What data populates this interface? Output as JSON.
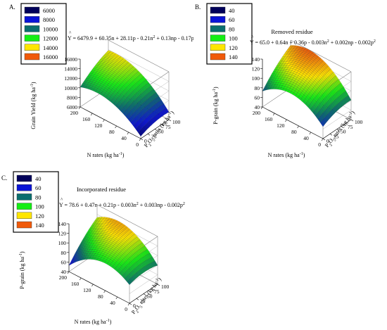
{
  "colors": {
    "c0": "#00005a",
    "c1": "#0a14d6",
    "c2": "#0a6e6e",
    "c3": "#14ee14",
    "c4": "#ffe600",
    "c5": "#f05a0a"
  },
  "chart_data": [
    {
      "type": "surface3d",
      "panel_label": "A.",
      "title": "",
      "equation": {
        "lhs": "Y = ",
        "terms": [
          {
            "text": "6479.9 + 60.35n + 28.11p - 0.21n"
          },
          {
            "sup": "2"
          },
          {
            "text": " + 0.13np - 0.17p"
          },
          {
            "sup": "2"
          }
        ]
      },
      "legend": [
        "6000",
        "8000",
        "10000",
        "12000",
        "14000",
        "16000"
      ],
      "zlabel": {
        "main": "Grain Yield (kg ha",
        "sup": "-1",
        "close": ")"
      },
      "xlabel": {
        "main": "N rates (kg ha",
        "sup": "-1",
        "close": ")"
      },
      "ylabel": {
        "pre": "P",
        "sub": "2",
        "mid": "O",
        "sub2": "5",
        "main": " rates (kg ha",
        "sup": "-1",
        "close": ")"
      },
      "n_ticks": [
        "200",
        "160",
        "120",
        "80",
        "40",
        "0"
      ],
      "p_ticks": [
        "0",
        "25",
        "50",
        "75",
        "100"
      ],
      "z_ticks": [
        "6000",
        "8000",
        "10000",
        "12000",
        "14000",
        "16000"
      ],
      "z_range": [
        6000,
        16000
      ],
      "n_range": [
        0,
        200
      ],
      "p_range": [
        0,
        100
      ],
      "coefficients": {
        "b0": 6479.9,
        "bn": 60.35,
        "bp": 28.11,
        "bnn": -0.21,
        "bnp": 0.13,
        "bpp": -0.17
      }
    },
    {
      "type": "surface3d",
      "panel_label": "B.",
      "title": "Removed residue",
      "equation": {
        "lhs": "Y = ",
        "terms": [
          {
            "text": "65.0 + 0.64n + 0.36p - 0.003n"
          },
          {
            "sup": "2"
          },
          {
            "text": " + 0.002np - 0.002p"
          },
          {
            "sup": "2"
          }
        ]
      },
      "legend": [
        "40",
        "60",
        "80",
        "100",
        "120",
        "140"
      ],
      "zlabel": {
        "main": "P-grain (kg ha",
        "sup": "-1",
        "close": ")"
      },
      "xlabel": {
        "main": "N rates (kg ha",
        "sup": "-1",
        "close": ")"
      },
      "ylabel": {
        "pre": "P",
        "sub": "2",
        "mid": "O",
        "sub2": "5",
        "main": " rates (kg ha",
        "sup": "-1",
        "close": ")"
      },
      "n_ticks": [
        "200",
        "160",
        "120",
        "80",
        "40",
        "0"
      ],
      "p_ticks": [
        "0",
        "25",
        "50",
        "75",
        "100"
      ],
      "z_ticks": [
        "40",
        "60",
        "80",
        "100",
        "120",
        "140"
      ],
      "z_range": [
        40,
        140
      ],
      "n_range": [
        0,
        200
      ],
      "p_range": [
        0,
        100
      ],
      "coefficients": {
        "b0": 65.0,
        "bn": 0.64,
        "bp": 0.36,
        "bnn": -0.003,
        "bnp": 0.002,
        "bpp": -0.002
      }
    },
    {
      "type": "surface3d",
      "panel_label": "C.",
      "title": "Incorporated residue",
      "equation": {
        "lhs": "Y = ",
        "terms": [
          {
            "text": "78.6 + 0.47n + 0.21p - 0.003n"
          },
          {
            "sup": "2"
          },
          {
            "text": " + 0.003np - 0.002p"
          },
          {
            "sup": "2"
          }
        ]
      },
      "legend": [
        "40",
        "60",
        "80",
        "100",
        "120",
        "140"
      ],
      "zlabel": {
        "main": "P-grain (kg ha",
        "sup": "-1",
        "close": ")"
      },
      "xlabel": {
        "main": "N rates (kg ha",
        "sup": "-1",
        "close": ")"
      },
      "ylabel": {
        "pre": "P",
        "sub": "2",
        "mid": "O",
        "sub2": "5",
        "main": " rates (kg ha",
        "sup": "-1",
        "close": ")"
      },
      "n_ticks": [
        "200",
        "160",
        "120",
        "80",
        "40",
        "0"
      ],
      "p_ticks": [
        "0",
        "25",
        "50",
        "75",
        "100"
      ],
      "z_ticks": [
        "40",
        "60",
        "80",
        "100",
        "120",
        "140"
      ],
      "z_range": [
        40,
        140
      ],
      "n_range": [
        0,
        200
      ],
      "p_range": [
        0,
        100
      ],
      "coefficients": {
        "b0": 78.6,
        "bn": 0.47,
        "bp": 0.21,
        "bnn": -0.003,
        "bnp": 0.003,
        "bpp": -0.002
      }
    }
  ]
}
